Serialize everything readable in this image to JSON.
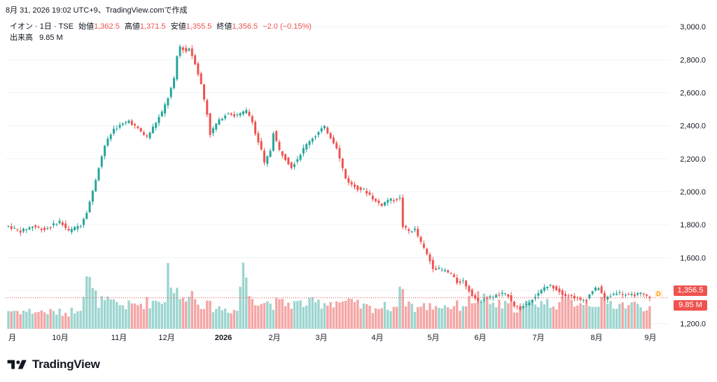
{
  "header": {
    "timestamp": "8月 31, 2026 19:02 UTC+9、TradingView.comで作成"
  },
  "legend": {
    "symbol": "イオン · 1日 · TSE",
    "open_label": "始値",
    "open_value": "1,362.5",
    "high_label": "高値",
    "high_value": "1,371.5",
    "low_label": "安値",
    "low_value": "1,355.5",
    "close_label": "終値",
    "close_value": "1,356.5",
    "change": "−2.0 (−0.15%)",
    "volume_label": "出来高",
    "volume_value": "9.85 M"
  },
  "price_tag": "1,356.5",
  "volume_tag": "9.85 M",
  "badge": "D",
  "footer": {
    "brand": "TradingView"
  },
  "colors": {
    "up": "#26a69a",
    "down": "#ef5350",
    "vol_up": "#9dd5cf",
    "vol_down": "#f4a6a5",
    "grid": "#f0f3fa",
    "text": "#131722"
  },
  "chart_data": {
    "type": "candlestick",
    "y_axis_ticks": [
      "3,000.0",
      "2,800.0",
      "2,600.0",
      "2,400.0",
      "2,200.0",
      "2,000.0",
      "1,800.0",
      "1,600.0",
      "1,400.0",
      "1,200.0"
    ],
    "ylim": [
      1160,
      3060
    ],
    "x_axis_ticks": [
      "月",
      "10月",
      "11月",
      "12月",
      "2026",
      "2月",
      "3月",
      "4月",
      "5月",
      "6月",
      "7月",
      "8月",
      "9月"
    ],
    "last_close": 1356.5,
    "last_volume": "9.85M",
    "price_path": [
      [
        0,
        1790
      ],
      [
        4,
        1760
      ],
      [
        8,
        1790
      ],
      [
        12,
        1770
      ],
      [
        17,
        1820
      ],
      [
        20,
        1760
      ],
      [
        24,
        1800
      ],
      [
        26,
        1880
      ],
      [
        28,
        2000
      ],
      [
        30,
        2150
      ],
      [
        32,
        2280
      ],
      [
        35,
        2380
      ],
      [
        38,
        2410
      ],
      [
        40,
        2430
      ],
      [
        43,
        2380
      ],
      [
        46,
        2330
      ],
      [
        48,
        2390
      ],
      [
        51,
        2480
      ],
      [
        53,
        2570
      ],
      [
        55,
        2680
      ],
      [
        56,
        2820
      ],
      [
        57,
        2880
      ],
      [
        59,
        2850
      ],
      [
        60,
        2870
      ],
      [
        62,
        2780
      ],
      [
        64,
        2650
      ],
      [
        66,
        2470
      ],
      [
        67,
        2350
      ],
      [
        69,
        2410
      ],
      [
        71,
        2450
      ],
      [
        73,
        2480
      ],
      [
        75,
        2460
      ],
      [
        77,
        2470
      ],
      [
        79,
        2490
      ],
      [
        81,
        2430
      ],
      [
        82,
        2350
      ],
      [
        84,
        2250
      ],
      [
        85,
        2170
      ],
      [
        87,
        2250
      ],
      [
        88,
        2360
      ],
      [
        90,
        2250
      ],
      [
        92,
        2200
      ],
      [
        94,
        2150
      ],
      [
        96,
        2200
      ],
      [
        98,
        2260
      ],
      [
        100,
        2310
      ],
      [
        102,
        2340
      ],
      [
        104,
        2380
      ],
      [
        105,
        2390
      ],
      [
        107,
        2330
      ],
      [
        109,
        2270
      ],
      [
        110,
        2200
      ],
      [
        112,
        2080
      ],
      [
        114,
        2040
      ],
      [
        116,
        2020
      ],
      [
        118,
        2010
      ],
      [
        120,
        1980
      ],
      [
        122,
        1940
      ],
      [
        124,
        1920
      ],
      [
        126,
        1950
      ],
      [
        128,
        1950
      ],
      [
        130,
        1960
      ],
      [
        131,
        1790
      ],
      [
        133,
        1760
      ],
      [
        135,
        1770
      ],
      [
        137,
        1690
      ],
      [
        139,
        1620
      ],
      [
        141,
        1540
      ],
      [
        143,
        1530
      ],
      [
        145,
        1520
      ],
      [
        147,
        1500
      ],
      [
        149,
        1450
      ],
      [
        151,
        1460
      ],
      [
        153,
        1400
      ],
      [
        156,
        1330
      ],
      [
        158,
        1350
      ],
      [
        160,
        1360
      ],
      [
        162,
        1370
      ],
      [
        164,
        1380
      ],
      [
        166,
        1370
      ],
      [
        168,
        1310
      ],
      [
        170,
        1290
      ],
      [
        172,
        1320
      ],
      [
        174,
        1350
      ],
      [
        176,
        1380
      ],
      [
        178,
        1420
      ],
      [
        180,
        1430
      ],
      [
        182,
        1410
      ],
      [
        184,
        1380
      ],
      [
        186,
        1370
      ],
      [
        188,
        1360
      ],
      [
        190,
        1340
      ],
      [
        192,
        1350
      ],
      [
        194,
        1400
      ],
      [
        196,
        1420
      ],
      [
        198,
        1350
      ],
      [
        200,
        1370
      ],
      [
        202,
        1390
      ],
      [
        204,
        1380
      ],
      [
        206,
        1370
      ],
      [
        208,
        1375
      ],
      [
        210,
        1380
      ],
      [
        212,
        1365
      ],
      [
        213,
        1356.5
      ]
    ],
    "volume_path": [
      [
        0,
        8
      ],
      [
        20,
        7
      ],
      [
        24,
        10
      ],
      [
        26,
        24
      ],
      [
        28,
        16
      ],
      [
        30,
        12
      ],
      [
        40,
        10
      ],
      [
        52,
        13
      ],
      [
        53,
        27
      ],
      [
        55,
        17
      ],
      [
        58,
        12
      ],
      [
        60,
        18
      ],
      [
        62,
        13
      ],
      [
        66,
        10
      ],
      [
        70,
        9
      ],
      [
        76,
        8
      ],
      [
        78,
        30
      ],
      [
        79,
        20
      ],
      [
        80,
        15
      ],
      [
        84,
        12
      ],
      [
        88,
        11
      ],
      [
        100,
        11
      ],
      [
        110,
        12
      ],
      [
        120,
        9
      ],
      [
        129,
        10
      ],
      [
        130,
        23
      ],
      [
        131,
        14
      ],
      [
        135,
        9
      ],
      [
        140,
        10
      ],
      [
        150,
        10
      ],
      [
        156,
        14
      ],
      [
        160,
        11
      ],
      [
        170,
        9
      ],
      [
        175,
        12
      ],
      [
        180,
        11
      ],
      [
        190,
        12
      ],
      [
        200,
        11
      ],
      [
        213,
        9.85
      ]
    ],
    "volume_range": [
      0,
      35
    ]
  }
}
